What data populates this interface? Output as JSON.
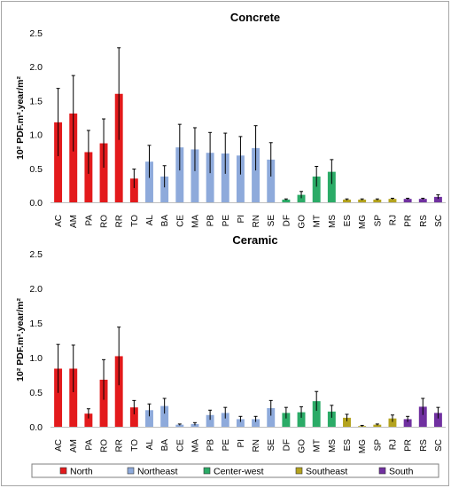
{
  "chart_data": [
    {
      "type": "bar",
      "title": "Concrete",
      "ylabel": "10² PDF.m².year/m²",
      "ylim": [
        0,
        2.5
      ],
      "yticks": [
        "0.0",
        "0.5",
        "1.0",
        "1.5",
        "2.0",
        "2.5"
      ],
      "categories": [
        "AC",
        "AM",
        "PA",
        "RO",
        "RR",
        "TO",
        "AL",
        "BA",
        "CE",
        "MA",
        "PB",
        "PE",
        "PI",
        "RN",
        "SE",
        "DF",
        "GO",
        "MT",
        "MS",
        "ES",
        "MG",
        "SP",
        "RJ",
        "PR",
        "RS",
        "SC"
      ],
      "groups": [
        "North",
        "North",
        "North",
        "North",
        "North",
        "North",
        "Northeast",
        "Northeast",
        "Northeast",
        "Northeast",
        "Northeast",
        "Northeast",
        "Northeast",
        "Northeast",
        "Northeast",
        "Center-west",
        "Center-west",
        "Center-west",
        "Center-west",
        "Southeast",
        "Southeast",
        "Southeast",
        "Southeast",
        "South",
        "South",
        "South"
      ],
      "values": [
        1.18,
        1.31,
        0.74,
        0.87,
        1.6,
        0.35,
        0.6,
        0.38,
        0.81,
        0.78,
        0.73,
        0.72,
        0.69,
        0.8,
        0.63,
        0.04,
        0.11,
        0.38,
        0.45,
        0.04,
        0.04,
        0.04,
        0.05,
        0.05,
        0.05,
        0.08
      ],
      "errors": [
        0.5,
        0.56,
        0.32,
        0.36,
        0.68,
        0.14,
        0.24,
        0.16,
        0.34,
        0.32,
        0.3,
        0.3,
        0.28,
        0.33,
        0.25,
        0.01,
        0.05,
        0.15,
        0.18,
        0.01,
        0.01,
        0.01,
        0.01,
        0.01,
        0.01,
        0.03
      ]
    },
    {
      "type": "bar",
      "title": "Ceramic",
      "ylabel": "10² PDF.m².year/m²",
      "ylim": [
        0,
        2.5
      ],
      "yticks": [
        "0.0",
        "0.5",
        "1.0",
        "1.5",
        "2.0",
        "2.5"
      ],
      "categories": [
        "AC",
        "AM",
        "PA",
        "RO",
        "RR",
        "TO",
        "AL",
        "BA",
        "CE",
        "MA",
        "PB",
        "PE",
        "PI",
        "RN",
        "SE",
        "DF",
        "GO",
        "MT",
        "MS",
        "ES",
        "MG",
        "SP",
        "RJ",
        "PR",
        "RS",
        "SC"
      ],
      "groups": [
        "North",
        "North",
        "North",
        "North",
        "North",
        "North",
        "Northeast",
        "Northeast",
        "Northeast",
        "Northeast",
        "Northeast",
        "Northeast",
        "Northeast",
        "Northeast",
        "Northeast",
        "Center-west",
        "Center-west",
        "Center-west",
        "Center-west",
        "Southeast",
        "Southeast",
        "Southeast",
        "Southeast",
        "South",
        "South",
        "South"
      ],
      "values": [
        0.84,
        0.84,
        0.19,
        0.68,
        1.02,
        0.28,
        0.24,
        0.3,
        0.03,
        0.04,
        0.17,
        0.2,
        0.11,
        0.11,
        0.27,
        0.2,
        0.21,
        0.37,
        0.22,
        0.13,
        0.01,
        0.03,
        0.12,
        0.11,
        0.29,
        0.2
      ],
      "errors": [
        0.35,
        0.34,
        0.07,
        0.29,
        0.42,
        0.1,
        0.09,
        0.11,
        0.01,
        0.02,
        0.07,
        0.08,
        0.04,
        0.04,
        0.11,
        0.08,
        0.08,
        0.14,
        0.09,
        0.05,
        0.01,
        0.01,
        0.05,
        0.04,
        0.12,
        0.08
      ]
    }
  ],
  "legend": {
    "items": [
      {
        "label": "North",
        "color": "#e31a1c"
      },
      {
        "label": "Northeast",
        "color": "#8eaadb"
      },
      {
        "label": "Center-west",
        "color": "#2bab67"
      },
      {
        "label": "Southeast",
        "color": "#b4a31e"
      },
      {
        "label": "South",
        "color": "#7030a0"
      }
    ]
  }
}
